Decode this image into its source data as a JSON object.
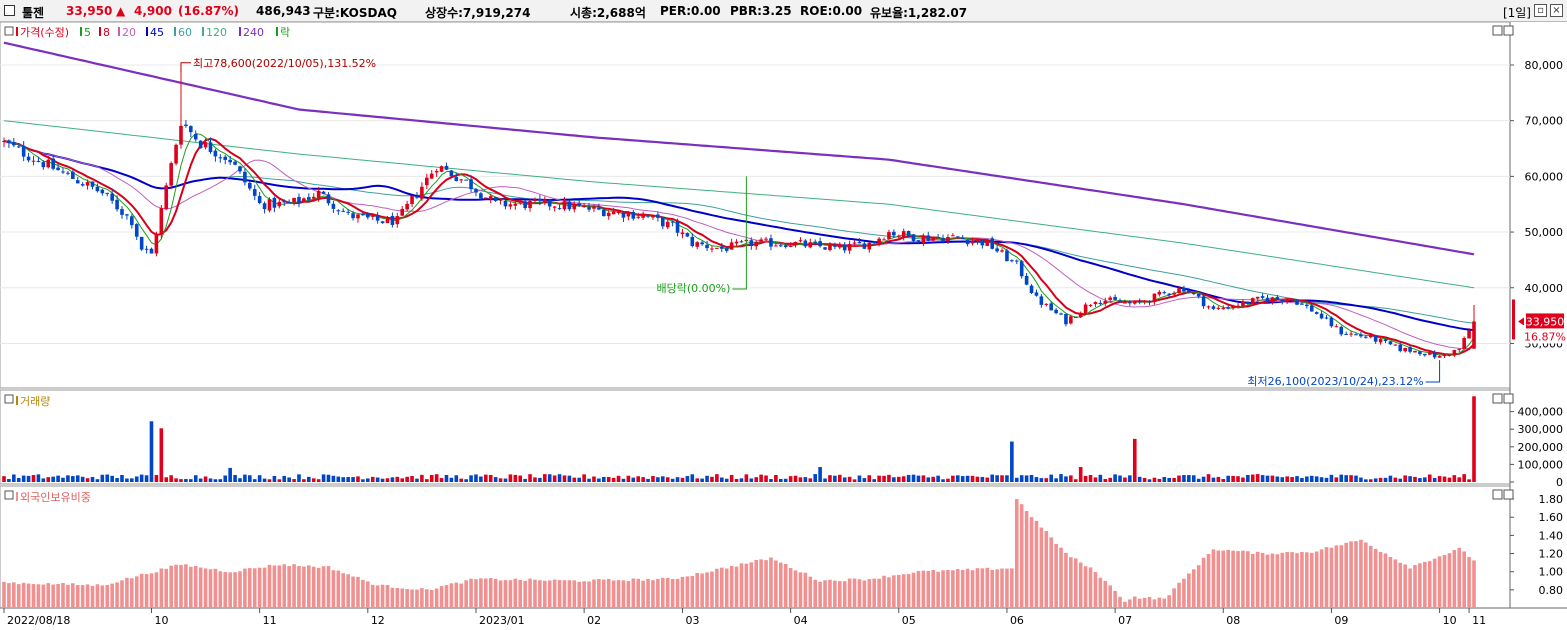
{
  "header": {
    "stock_name": "툴젠",
    "price": "33,950",
    "change_arrow": "▲",
    "change": "4,900",
    "change_pct": "(16.87%)",
    "volume": "486,943",
    "market": "구분:KOSDAQ",
    "listed_shares": "상장수:7,919,274",
    "market_cap": "시총:2,688억",
    "per": "PER:0.00",
    "pbr": "PBR:3.25",
    "roe": "ROE:0.00",
    "retention": "유보율:1,282.07",
    "period": "[1일]",
    "colors": {
      "up": "#e0001b",
      "down": "#0046c8",
      "text": "#000000"
    }
  },
  "price_panel": {
    "legend": [
      {
        "label": "가격(수정)",
        "color": "#e0001b"
      },
      {
        "label": "5",
        "color": "#1a9e1a"
      },
      {
        "label": "8",
        "color": "#d6001c"
      },
      {
        "label": "20",
        "color": "#c060c0"
      },
      {
        "label": "45",
        "color": "#0000c8"
      },
      {
        "label": "60",
        "color": "#40a0a0"
      },
      {
        "label": "120",
        "color": "#40b080"
      },
      {
        "label": "240",
        "color": "#7b2fbe"
      },
      {
        "label": "락",
        "color": "#1a9e1a"
      }
    ],
    "high_annotation": "최고78,600(2022/10/05),131.52%",
    "low_annotation": "최저26,100(2023/10/24),23.12%",
    "dividend_annotation": "배당락(0.00%)",
    "current_price_label": "33,950",
    "current_change_label": "16.87%",
    "y_ticks": [
      "80,000",
      "70,000",
      "60,000",
      "50,000",
      "40,000",
      "30,000"
    ]
  },
  "volume_panel": {
    "legend": "거래량",
    "y_ticks": [
      "400,000",
      "300,000",
      "200,000",
      "100,000",
      "0"
    ]
  },
  "foreign_panel": {
    "legend": "외국인보유비중",
    "y_ticks": [
      "1.80",
      "1.60",
      "1.40",
      "1.20",
      "1.00",
      "0.80"
    ]
  },
  "x_axis": {
    "labels": [
      "2022/08/18",
      "10",
      "11",
      "12",
      "2023/01",
      "02",
      "03",
      "04",
      "05",
      "06",
      "07",
      "08",
      "09",
      "10",
      "11"
    ]
  },
  "chart_data": {
    "type": "candlestick",
    "ylim_price": [
      22000,
      87000
    ],
    "ylim_volume": [
      0,
      500000
    ],
    "ylim_foreign": [
      0.6,
      1.9
    ],
    "anchors": {
      "days": [
        0,
        20,
        26,
        28,
        30,
        36,
        40,
        46,
        52,
        58,
        64,
        70,
        76,
        80,
        84,
        88,
        94,
        100,
        106,
        112,
        120,
        130,
        136,
        140,
        146,
        152,
        160,
        170,
        176,
        180,
        186,
        194,
        200,
        206,
        210,
        216,
        222,
        230,
        236,
        240,
        246,
        256,
        262,
        266,
        272,
        278,
        284,
        288,
        292,
        296,
        299
      ],
      "close": [
        66000,
        57000,
        52000,
        47000,
        46000,
        70000,
        66000,
        63000,
        55000,
        55000,
        57000,
        53000,
        52000,
        52000,
        57000,
        62000,
        59000,
        55000,
        55000,
        55000,
        54000,
        53000,
        51000,
        48000,
        47000,
        48000,
        48000,
        47000,
        48000,
        50000,
        49000,
        49000,
        48000,
        44000,
        38000,
        34000,
        38000,
        37000,
        39000,
        40000,
        36000,
        38000,
        38000,
        36000,
        32000,
        31000,
        29000,
        28500,
        27500,
        29000,
        33950
      ]
    },
    "ma240_anchors": {
      "days": [
        0,
        60,
        120,
        180,
        240,
        299
      ],
      "values": [
        84000,
        72000,
        67000,
        63000,
        55000,
        46000
      ]
    },
    "ma120_anchors": {
      "days": [
        0,
        60,
        120,
        180,
        240,
        299
      ],
      "values": [
        70000,
        64000,
        59000,
        55000,
        48000,
        40000
      ]
    },
    "foreign_anchors": {
      "days": [
        0,
        20,
        36,
        46,
        56,
        66,
        76,
        86,
        96,
        116,
        136,
        156,
        166,
        176,
        186,
        196,
        205,
        206,
        210,
        216,
        222,
        228,
        230,
        236,
        246,
        256,
        266,
        276,
        286,
        296,
        299
      ],
      "values": [
        0.88,
        0.85,
        1.08,
        1.0,
        1.08,
        1.05,
        0.85,
        0.8,
        0.92,
        0.9,
        0.92,
        1.15,
        0.9,
        0.92,
        1.0,
        1.02,
        1.04,
        1.8,
        1.55,
        1.2,
        1.0,
        0.68,
        0.72,
        0.7,
        1.25,
        1.2,
        1.22,
        1.35,
        1.05,
        1.25,
        1.13
      ]
    },
    "volume_spikes": [
      {
        "day": 30,
        "value": 345000
      },
      {
        "day": 32,
        "value": 305000
      },
      {
        "day": 46,
        "value": 80000
      },
      {
        "day": 166,
        "value": 85000
      },
      {
        "day": 205,
        "value": 230000
      },
      {
        "day": 219,
        "value": 85000
      },
      {
        "day": 230,
        "value": 245000
      },
      {
        "day": 299,
        "value": 486943
      }
    ]
  }
}
